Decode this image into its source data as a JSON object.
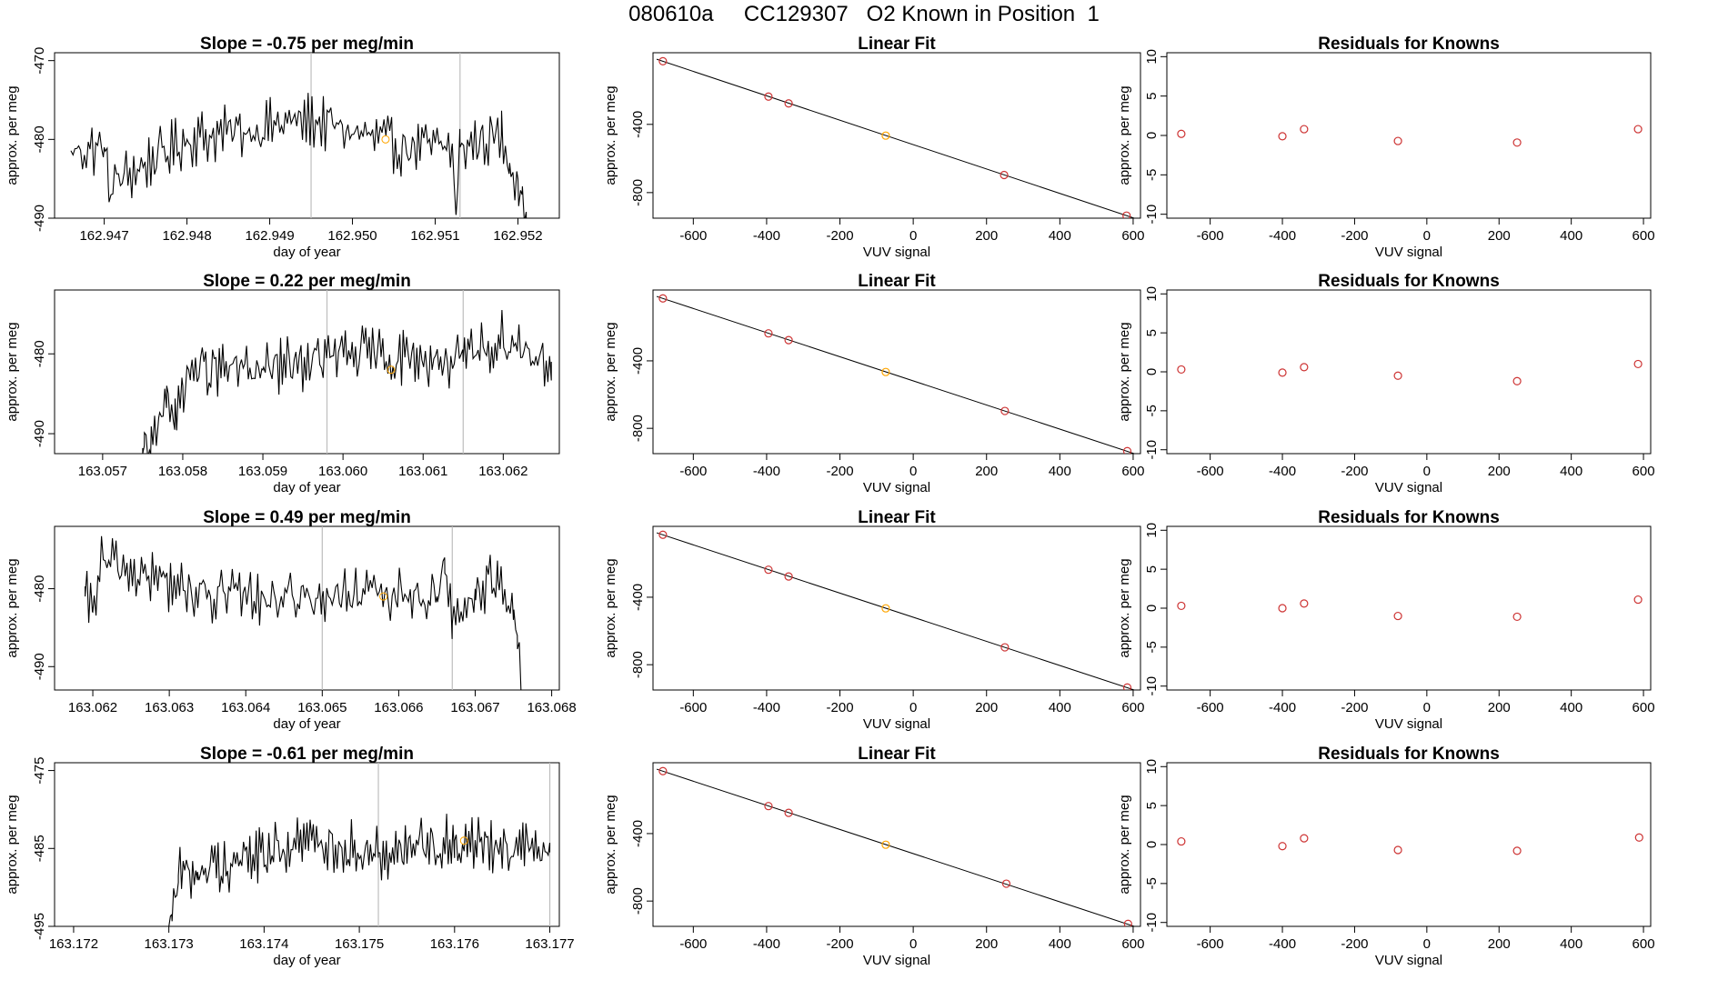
{
  "page_title": "080610a     CC129307   O2 Known in Position  1",
  "colors": {
    "series": "#000000",
    "marker": "#ffa500",
    "known_points": "#cd3333",
    "grey_lines": "#bebebe",
    "axis": "#000000"
  },
  "chart_data": [
    {
      "type": "line",
      "panel": "time-series",
      "row": 1,
      "title": "Slope =  -0.75  per meg/min",
      "xlabel": "day of year",
      "ylabel": "approx. per meg",
      "xlim": [
        162.9464,
        162.9525
      ],
      "ylim": [
        -490,
        -469
      ],
      "xticks": [
        "162.947",
        "162.948",
        "162.949",
        "162.950",
        "162.951",
        "162.952"
      ],
      "yticks": [
        "-470",
        "-480",
        "-490"
      ],
      "vlines": [
        162.9495,
        162.9513
      ],
      "marker": {
        "x": 162.9504,
        "y": -480
      },
      "baseline": -480,
      "start": 162.9466,
      "end": 162.9521,
      "trace": [
        {
          "x": 162.9466,
          "y": -481.5
        },
        {
          "x": 162.947,
          "y": -481
        },
        {
          "x": 162.94705,
          "y": -486
        },
        {
          "x": 162.948,
          "y": -480
        },
        {
          "x": 162.9495,
          "y": -477.5
        },
        {
          "x": 162.9506,
          "y": -481
        },
        {
          "x": 162.9512,
          "y": -481
        },
        {
          "x": 162.95125,
          "y": -489.5
        },
        {
          "x": 162.9513,
          "y": -481
        },
        {
          "x": 162.9518,
          "y": -479.5
        },
        {
          "x": 162.9519,
          "y": -483
        },
        {
          "x": 162.952,
          "y": -485
        },
        {
          "x": 162.95205,
          "y": -487
        },
        {
          "x": 162.9521,
          "y": -490.5
        }
      ]
    },
    {
      "type": "scatter",
      "panel": "linear-fit",
      "row": 1,
      "title": "Linear Fit",
      "xlabel": "VUV signal",
      "ylabel": "approx. per meg",
      "xlim": [
        -710,
        620
      ],
      "ylim": [
        -950,
        20
      ],
      "xticks": [
        "-600",
        "-400",
        "-200",
        "0",
        "200",
        "400",
        "600"
      ],
      "yticks": [
        "-400",
        "-800"
      ],
      "points": [
        {
          "x": -683,
          "y": -30
        },
        {
          "x": -395,
          "y": -237
        },
        {
          "x": -340,
          "y": -277
        },
        {
          "x": -75,
          "y": -466
        },
        {
          "x": 248,
          "y": -697
        },
        {
          "x": 582,
          "y": -935
        }
      ],
      "highlight_index": 3,
      "fit_line": [
        [
          -700,
          -18
        ],
        [
          610,
          -955
        ]
      ]
    },
    {
      "type": "scatter",
      "panel": "residuals",
      "row": 1,
      "title": "Residuals for Knowns",
      "xlabel": "VUV signal",
      "ylabel": "approx. per meg",
      "xlim": [
        -720,
        620
      ],
      "ylim": [
        -10.5,
        10.5
      ],
      "xticks": [
        "-600",
        "-400",
        "-200",
        "0",
        "200",
        "400",
        "600"
      ],
      "yticks": [
        "10",
        "5",
        "0",
        "-5",
        "-10"
      ],
      "points": [
        {
          "x": -680,
          "y": 0.2
        },
        {
          "x": -400,
          "y": -0.1
        },
        {
          "x": -340,
          "y": 0.8
        },
        {
          "x": -80,
          "y": -0.7
        },
        {
          "x": 250,
          "y": -0.9
        },
        {
          "x": 585,
          "y": 0.8
        }
      ]
    },
    {
      "type": "line",
      "panel": "time-series",
      "row": 2,
      "title": "Slope =  0.22  per meg/min",
      "xlabel": "day of year",
      "ylabel": "approx. per meg",
      "xlim": [
        163.0564,
        163.0627
      ],
      "ylim": [
        -492.5,
        -472
      ],
      "xticks": [
        "163.057",
        "163.058",
        "163.059",
        "163.060",
        "163.061",
        "163.062"
      ],
      "yticks": [
        "-480",
        "-490"
      ],
      "vlines": [
        163.0598,
        163.0615
      ],
      "marker": {
        "x": 163.0606,
        "y": -482
      },
      "baseline": -481,
      "start": 163.0575,
      "end": 163.0626,
      "trace": [
        {
          "x": 163.0575,
          "y": -492.5
        },
        {
          "x": 163.05752,
          "y": -491.5
        },
        {
          "x": 163.0576,
          "y": -492.5
        },
        {
          "x": 163.0577,
          "y": -488
        },
        {
          "x": 163.0578,
          "y": -484
        },
        {
          "x": 163.0579,
          "y": -489.5
        },
        {
          "x": 163.058,
          "y": -484
        },
        {
          "x": 163.0581,
          "y": -482
        },
        {
          "x": 163.059,
          "y": -482
        },
        {
          "x": 163.0601,
          "y": -480
        },
        {
          "x": 163.0615,
          "y": -481
        },
        {
          "x": 163.062,
          "y": -478
        },
        {
          "x": 163.0626,
          "y": -481
        }
      ]
    },
    {
      "type": "scatter",
      "panel": "linear-fit",
      "row": 2,
      "title": "Linear Fit",
      "xlabel": "VUV signal",
      "ylabel": "approx. per meg",
      "xlim": [
        -710,
        620
      ],
      "ylim": [
        -950,
        20
      ],
      "xticks": [
        "-600",
        "-400",
        "-200",
        "0",
        "200",
        "400",
        "600"
      ],
      "yticks": [
        "-400",
        "-800"
      ],
      "points": [
        {
          "x": -683,
          "y": -30
        },
        {
          "x": -395,
          "y": -237
        },
        {
          "x": -340,
          "y": -277
        },
        {
          "x": -75,
          "y": -466
        },
        {
          "x": 250,
          "y": -697
        },
        {
          "x": 584,
          "y": -935
        }
      ],
      "highlight_index": 3,
      "fit_line": [
        [
          -700,
          -18
        ],
        [
          610,
          -955
        ]
      ]
    },
    {
      "type": "scatter",
      "panel": "residuals",
      "row": 2,
      "title": "Residuals for Knowns",
      "xlabel": "VUV signal",
      "ylabel": "approx. per meg",
      "xlim": [
        -720,
        620
      ],
      "ylim": [
        -10.5,
        10.5
      ],
      "xticks": [
        "-600",
        "-400",
        "-200",
        "0",
        "200",
        "400",
        "600"
      ],
      "yticks": [
        "10",
        "5",
        "0",
        "-5",
        "-10"
      ],
      "points": [
        {
          "x": -680,
          "y": 0.3
        },
        {
          "x": -400,
          "y": -0.1
        },
        {
          "x": -340,
          "y": 0.6
        },
        {
          "x": -80,
          "y": -0.5
        },
        {
          "x": 250,
          "y": -1.2
        },
        {
          "x": 585,
          "y": 1.0
        }
      ]
    },
    {
      "type": "line",
      "panel": "time-series",
      "row": 3,
      "title": "Slope =  0.49  per meg/min",
      "xlabel": "day of year",
      "ylabel": "approx. per meg",
      "xlim": [
        163.0615,
        163.0681
      ],
      "ylim": [
        -493,
        -472
      ],
      "xticks": [
        "163.062",
        "163.063",
        "163.064",
        "163.065",
        "163.066",
        "163.067",
        "163.068"
      ],
      "yticks": [
        "-480",
        "-490"
      ],
      "vlines": [
        163.065,
        163.0667
      ],
      "marker": {
        "x": 163.0658,
        "y": -481
      },
      "baseline": -481,
      "start": 163.0619,
      "end": 163.0676,
      "trace": [
        {
          "x": 163.0619,
          "y": -481
        },
        {
          "x": 163.062,
          "y": -483
        },
        {
          "x": 163.0621,
          "y": -476.5
        },
        {
          "x": 163.0635,
          "y": -481
        },
        {
          "x": 163.065,
          "y": -481
        },
        {
          "x": 163.0665,
          "y": -481
        },
        {
          "x": 163.0666,
          "y": -476
        },
        {
          "x": 163.0667,
          "y": -484.5
        },
        {
          "x": 163.067,
          "y": -480
        },
        {
          "x": 163.0673,
          "y": -479
        },
        {
          "x": 163.0675,
          "y": -484
        },
        {
          "x": 163.06755,
          "y": -486
        },
        {
          "x": 163.0676,
          "y": -493
        }
      ]
    },
    {
      "type": "scatter",
      "panel": "linear-fit",
      "row": 3,
      "title": "Linear Fit",
      "xlabel": "VUV signal",
      "ylabel": "approx. per meg",
      "xlim": [
        -710,
        620
      ],
      "ylim": [
        -950,
        20
      ],
      "xticks": [
        "-600",
        "-400",
        "-200",
        "0",
        "200",
        "400",
        "600"
      ],
      "yticks": [
        "-400",
        "-800"
      ],
      "points": [
        {
          "x": -683,
          "y": -30
        },
        {
          "x": -395,
          "y": -237
        },
        {
          "x": -340,
          "y": -277
        },
        {
          "x": -75,
          "y": -466
        },
        {
          "x": 250,
          "y": -697
        },
        {
          "x": 584,
          "y": -935
        }
      ],
      "highlight_index": 3,
      "fit_line": [
        [
          -700,
          -18
        ],
        [
          610,
          -955
        ]
      ]
    },
    {
      "type": "scatter",
      "panel": "residuals",
      "row": 3,
      "title": "Residuals for Knowns",
      "xlabel": "VUV signal",
      "ylabel": "approx. per meg",
      "xlim": [
        -720,
        620
      ],
      "ylim": [
        -10.5,
        10.5
      ],
      "xticks": [
        "-600",
        "-400",
        "-200",
        "0",
        "200",
        "400",
        "600"
      ],
      "yticks": [
        "10",
        "5",
        "0",
        "-5",
        "-10"
      ],
      "points": [
        {
          "x": -680,
          "y": 0.3
        },
        {
          "x": -400,
          "y": 0
        },
        {
          "x": -340,
          "y": 0.6
        },
        {
          "x": -80,
          "y": -1.0
        },
        {
          "x": 250,
          "y": -1.1
        },
        {
          "x": 585,
          "y": 1.1
        }
      ]
    },
    {
      "type": "line",
      "panel": "time-series",
      "row": 4,
      "title": "Slope =  -0.61  per meg/min",
      "xlabel": "day of year",
      "ylabel": "approx. per meg",
      "xlim": [
        163.1718,
        163.1771
      ],
      "ylim": [
        -495,
        -474
      ],
      "xticks": [
        "163.172",
        "163.173",
        "163.174",
        "163.175",
        "163.176",
        "163.177"
      ],
      "yticks": [
        "-475",
        "-485",
        "-495"
      ],
      "vlines": [
        163.1752,
        163.177
      ],
      "marker": {
        "x": 163.1761,
        "y": -484
      },
      "baseline": -485,
      "start": 163.173,
      "end": 163.177,
      "trace": [
        {
          "x": 163.173,
          "y": -495
        },
        {
          "x": 163.17303,
          "y": -493.5
        },
        {
          "x": 163.1731,
          "y": -488.5
        },
        {
          "x": 163.1733,
          "y": -488
        },
        {
          "x": 163.1745,
          "y": -484
        },
        {
          "x": 163.1752,
          "y": -485.5
        },
        {
          "x": 163.176,
          "y": -484
        },
        {
          "x": 163.1768,
          "y": -485
        },
        {
          "x": 163.177,
          "y": -485.5
        }
      ]
    },
    {
      "type": "scatter",
      "panel": "linear-fit",
      "row": 4,
      "title": "Linear Fit",
      "xlabel": "VUV signal",
      "ylabel": "approx. per meg",
      "xlim": [
        -710,
        620
      ],
      "ylim": [
        -950,
        20
      ],
      "xticks": [
        "-600",
        "-400",
        "-200",
        "0",
        "200",
        "400",
        "600"
      ],
      "yticks": [
        "-400",
        "-800"
      ],
      "points": [
        {
          "x": -683,
          "y": -30
        },
        {
          "x": -395,
          "y": -237
        },
        {
          "x": -340,
          "y": -277
        },
        {
          "x": -75,
          "y": -466
        },
        {
          "x": 254,
          "y": -697
        },
        {
          "x": 586,
          "y": -935
        }
      ],
      "highlight_index": 3,
      "fit_line": [
        [
          -700,
          -18
        ],
        [
          610,
          -955
        ]
      ]
    },
    {
      "type": "scatter",
      "panel": "residuals",
      "row": 4,
      "title": "Residuals for Knowns",
      "xlabel": "VUV signal",
      "ylabel": "approx. per meg",
      "xlim": [
        -720,
        620
      ],
      "ylim": [
        -10.5,
        10.5
      ],
      "xticks": [
        "-600",
        "-400",
        "-200",
        "0",
        "200",
        "400",
        "600"
      ],
      "yticks": [
        "10",
        "5",
        "0",
        "-5",
        "-10"
      ],
      "points": [
        {
          "x": -680,
          "y": 0.4
        },
        {
          "x": -400,
          "y": -0.2
        },
        {
          "x": -340,
          "y": 0.8
        },
        {
          "x": -80,
          "y": -0.7
        },
        {
          "x": 250,
          "y": -0.8
        },
        {
          "x": 588,
          "y": 0.9
        }
      ]
    }
  ]
}
